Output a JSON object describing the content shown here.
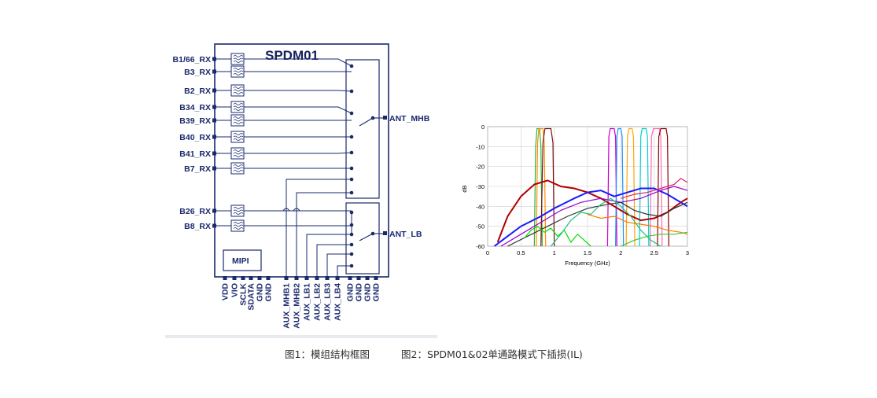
{
  "block_diagram": {
    "title": "SPDM01",
    "left_pins": [
      "B1/66_RX",
      "B3_RX",
      "B2_RX",
      "B34_RX",
      "B39_RX",
      "B40_RX",
      "B41_RX",
      "B7_RX",
      "B26_RX",
      "B8_RX"
    ],
    "ant_mhb": "ANT_MHB",
    "ant_lb": "ANT_LB",
    "mipi": "MIPI",
    "bottom_pins": [
      "VDD",
      "VIO",
      "SCLK",
      "SDATA",
      "GND",
      "GND",
      "AUX_MHB1",
      "AUX_MHB2",
      "AUX_LB1",
      "AUX_LB2",
      "AUX_LB3",
      "AUX_LB4",
      "GND",
      "GND",
      "GND",
      "GND"
    ]
  },
  "chart_data": {
    "type": "line",
    "title": "",
    "xlabel": "Frequency (GHz)",
    "ylabel": "dB",
    "xlim": [
      0,
      3
    ],
    "ylim": [
      -60,
      0
    ],
    "x_ticks": [
      "0",
      "0.5",
      "1",
      "1.5",
      "2",
      "2.5",
      "3"
    ],
    "y_ticks": [
      "0",
      "-10",
      "-20",
      "-30",
      "-40",
      "-50",
      "-60"
    ],
    "grid": true,
    "series": [
      {
        "color": "#2eb82e",
        "values": [
          [
            0.7,
            -60
          ],
          [
            0.72,
            -10
          ],
          [
            0.74,
            -1
          ],
          [
            0.78,
            -1
          ],
          [
            0.8,
            -10
          ],
          [
            0.82,
            -60
          ]
        ]
      },
      {
        "color": "#ff8c00",
        "values": [
          [
            0.73,
            -60
          ],
          [
            0.75,
            -8
          ],
          [
            0.77,
            -1
          ],
          [
            0.83,
            -1
          ],
          [
            0.85,
            -8
          ],
          [
            0.87,
            -60
          ]
        ]
      },
      {
        "color": "#7a1010",
        "values": [
          [
            0.8,
            -60
          ],
          [
            0.83,
            -8
          ],
          [
            0.86,
            -1
          ],
          [
            0.95,
            -1
          ],
          [
            0.98,
            -8
          ],
          [
            1.0,
            -60
          ]
        ]
      },
      {
        "color": "#cc00cc",
        "values": [
          [
            1.8,
            -60
          ],
          [
            1.82,
            -5
          ],
          [
            1.84,
            -1
          ],
          [
            1.9,
            -1
          ],
          [
            1.92,
            -5
          ],
          [
            1.94,
            -60
          ]
        ]
      },
      {
        "color": "#1e90ff",
        "values": [
          [
            1.92,
            -60
          ],
          [
            1.94,
            -5
          ],
          [
            1.96,
            -1
          ],
          [
            2.0,
            -1
          ],
          [
            2.02,
            -5
          ],
          [
            2.04,
            -60
          ]
        ]
      },
      {
        "color": "#ffa500",
        "values": [
          [
            2.08,
            -60
          ],
          [
            2.1,
            -5
          ],
          [
            2.12,
            -1
          ],
          [
            2.17,
            -1
          ],
          [
            2.19,
            -5
          ],
          [
            2.21,
            -60
          ]
        ]
      },
      {
        "color": "#00ced1",
        "values": [
          [
            2.28,
            -60
          ],
          [
            2.3,
            -5
          ],
          [
            2.32,
            -1
          ],
          [
            2.38,
            -1
          ],
          [
            2.4,
            -5
          ],
          [
            2.42,
            -60
          ]
        ]
      },
      {
        "color": "#ff69b4",
        "values": [
          [
            2.44,
            -60
          ],
          [
            2.46,
            -5
          ],
          [
            2.49,
            -1
          ],
          [
            2.58,
            -1
          ],
          [
            2.6,
            -5
          ],
          [
            2.62,
            -60
          ]
        ]
      },
      {
        "color": "#8b0000",
        "values": [
          [
            2.55,
            -60
          ],
          [
            2.57,
            -5
          ],
          [
            2.6,
            -1
          ],
          [
            2.68,
            -1
          ],
          [
            2.7,
            -5
          ],
          [
            2.72,
            -60
          ]
        ]
      },
      {
        "color": "#b00000",
        "values": [
          [
            0.15,
            -58
          ],
          [
            0.3,
            -45
          ],
          [
            0.5,
            -35
          ],
          [
            0.7,
            -29
          ],
          [
            0.9,
            -27
          ],
          [
            1.1,
            -30
          ],
          [
            1.3,
            -31
          ],
          [
            1.5,
            -33
          ],
          [
            1.7,
            -36
          ],
          [
            1.9,
            -40
          ],
          [
            2.1,
            -44
          ],
          [
            2.3,
            -47
          ],
          [
            2.5,
            -46
          ],
          [
            2.7,
            -43
          ],
          [
            2.9,
            -38
          ],
          [
            3.0,
            -36
          ]
        ]
      },
      {
        "color": "#1a1aff",
        "values": [
          [
            0.1,
            -60
          ],
          [
            0.3,
            -55
          ],
          [
            0.5,
            -50
          ],
          [
            0.8,
            -45
          ],
          [
            1.0,
            -41
          ],
          [
            1.3,
            -36
          ],
          [
            1.5,
            -33
          ],
          [
            1.7,
            -32
          ],
          [
            1.9,
            -35
          ],
          [
            2.1,
            -33
          ],
          [
            2.3,
            -31
          ],
          [
            2.5,
            -31
          ],
          [
            2.7,
            -34
          ],
          [
            2.9,
            -38
          ],
          [
            3.0,
            -40
          ]
        ]
      },
      {
        "color": "#9900cc",
        "values": [
          [
            0.2,
            -60
          ],
          [
            0.5,
            -54
          ],
          [
            0.8,
            -48
          ],
          [
            1.1,
            -42
          ],
          [
            1.4,
            -38
          ],
          [
            1.7,
            -36
          ],
          [
            2.0,
            -38
          ],
          [
            2.3,
            -36
          ],
          [
            2.6,
            -32
          ],
          [
            2.8,
            -30
          ],
          [
            3.0,
            -32
          ]
        ]
      },
      {
        "color": "#333333",
        "values": [
          [
            0.3,
            -60
          ],
          [
            0.6,
            -55
          ],
          [
            0.9,
            -50
          ],
          [
            1.2,
            -45
          ],
          [
            1.5,
            -41
          ],
          [
            1.8,
            -39
          ],
          [
            2.0,
            -38
          ],
          [
            2.2,
            -42
          ],
          [
            2.4,
            -44
          ],
          [
            2.6,
            -45
          ],
          [
            2.8,
            -41
          ],
          [
            3.0,
            -38
          ]
        ]
      },
      {
        "color": "#00dd00",
        "values": [
          [
            0.55,
            -56
          ],
          [
            0.65,
            -52
          ],
          [
            0.75,
            -50
          ],
          [
            0.85,
            -53
          ],
          [
            0.95,
            -51
          ],
          [
            1.05,
            -55
          ],
          [
            1.15,
            -52
          ],
          [
            1.25,
            -58
          ],
          [
            1.35,
            -54
          ],
          [
            1.45,
            -57
          ],
          [
            1.55,
            -60
          ]
        ]
      },
      {
        "color": "#20c080",
        "values": [
          [
            0.95,
            -60
          ],
          [
            1.1,
            -54
          ],
          [
            1.25,
            -47
          ],
          [
            1.4,
            -43
          ],
          [
            1.55,
            -44
          ],
          [
            1.7,
            -39
          ],
          [
            1.85,
            -36
          ],
          [
            2.0,
            -40
          ],
          [
            2.15,
            -45
          ],
          [
            2.3,
            -52
          ],
          [
            2.45,
            -57
          ],
          [
            2.6,
            -60
          ]
        ]
      },
      {
        "color": "#ff7700",
        "values": [
          [
            1.5,
            -44
          ],
          [
            1.7,
            -46
          ],
          [
            1.9,
            -45
          ],
          [
            2.1,
            -48
          ],
          [
            2.3,
            -49
          ],
          [
            2.5,
            -50
          ],
          [
            2.7,
            -52
          ],
          [
            2.9,
            -53
          ],
          [
            3.0,
            -54
          ]
        ]
      },
      {
        "color": "#33cc33",
        "values": [
          [
            2.0,
            -60
          ],
          [
            2.2,
            -57
          ],
          [
            2.4,
            -55
          ],
          [
            2.6,
            -54
          ],
          [
            2.8,
            -54
          ],
          [
            3.0,
            -53
          ]
        ]
      },
      {
        "color": "#dd2266",
        "values": [
          [
            2.0,
            -36
          ],
          [
            2.2,
            -34
          ],
          [
            2.4,
            -33
          ],
          [
            2.6,
            -31
          ],
          [
            2.8,
            -29
          ],
          [
            2.9,
            -26
          ],
          [
            3.0,
            -28
          ]
        ]
      }
    ]
  },
  "captions": {
    "fig1": "图1：模组结构框图",
    "fig2": "图2：SPDM01&02单通路模式下插损(IL)"
  }
}
